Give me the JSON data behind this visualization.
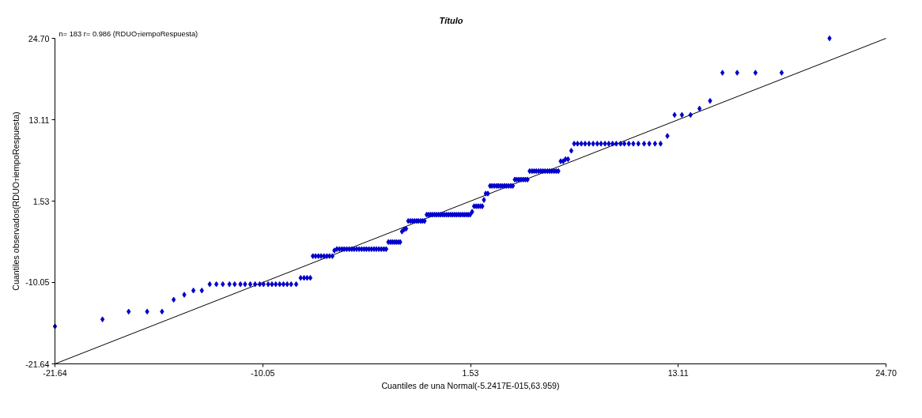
{
  "chart_data": {
    "type": "scatter",
    "title": "Título",
    "xlabel": "Cuantiles de una Normal(-5.2417E-015,63.959)",
    "ylabel": "Cuantiles observados(RDUO$_{T}$iempoRespuesta)",
    "annotations": [
      "n= 183 r= 0.986 (RDUO$_{T}$iempoRespuesta)"
    ],
    "xlim": [
      -21.64,
      24.7
    ],
    "ylim": [
      -21.64,
      24.7
    ],
    "xticks": [
      -21.64,
      -10.05,
      1.53,
      13.11,
      {
        "value": 24.7,
        "label": "24.70"
      }
    ],
    "yticks": [
      -21.64,
      -10.05,
      1.53,
      13.11,
      {
        "value": 24.7,
        "label": "24.70"
      }
    ],
    "grid": false,
    "series": [
      {
        "type": "line",
        "color": "#000000",
        "x": [
          -21.6,
          24.7
        ],
        "values": [
          -21.6,
          24.7
        ]
      },
      {
        "color": "#0000cc",
        "marker": "diamond",
        "x": [
          -21.64,
          -18.99,
          -17.53,
          -16.5,
          -15.67,
          -15.02,
          -14.43,
          -13.92,
          -13.45,
          -13.01,
          -12.64,
          -12.28,
          -11.91,
          -11.62,
          -11.3,
          -11.04,
          -10.75,
          -10.48,
          -10.22,
          -10.01,
          -9.75,
          -9.54,
          -9.33,
          -9.11,
          -8.9,
          -8.69,
          -8.47,
          -8.19,
          -7.94,
          -7.75,
          -7.58,
          -7.4,
          -7.26,
          -7.11,
          -6.95,
          -6.8,
          -6.64,
          -6.48,
          -6.33,
          -6.17,
          -6.06,
          -5.92,
          -5.78,
          -5.64,
          -5.51,
          -5.37,
          -5.23,
          -5.09,
          -4.96,
          -4.82,
          -4.68,
          -4.54,
          -4.4,
          -4.27,
          -4.13,
          -3.99,
          -3.85,
          -3.72,
          -3.58,
          -3.44,
          -3.3,
          -3.17,
          -3.05,
          -2.94,
          -2.83,
          -2.72,
          -2.61,
          -2.5,
          -2.39,
          -2.29,
          -2.17,
          -2.06,
          -1.94,
          -1.82,
          -1.71,
          -1.59,
          -1.48,
          -1.37,
          -1.25,
          -1.14,
          -1.03,
          -0.91,
          -0.8,
          -0.69,
          -0.58,
          -0.47,
          -0.36,
          -0.25,
          -0.14,
          -0.03,
          0.08,
          0.19,
          0.3,
          0.41,
          0.52,
          0.63,
          0.74,
          0.85,
          0.96,
          1.07,
          1.18,
          1.29,
          1.4,
          1.51,
          1.62,
          1.73,
          1.85,
          1.96,
          2.08,
          2.19,
          2.28,
          2.38,
          2.5,
          2.62,
          2.73,
          2.85,
          2.97,
          3.08,
          3.19,
          3.31,
          3.43,
          3.54,
          3.66,
          3.78,
          3.89,
          4.0,
          4.11,
          4.23,
          4.35,
          4.47,
          4.59,
          4.71,
          4.83,
          4.96,
          5.08,
          5.2,
          5.33,
          5.45,
          5.57,
          5.69,
          5.82,
          5.94,
          6.06,
          6.19,
          6.31,
          6.43,
          6.56,
          6.7,
          6.83,
          6.97,
          7.15,
          7.31,
          7.5,
          7.71,
          7.92,
          8.14,
          8.37,
          8.6,
          8.81,
          9.03,
          9.24,
          9.45,
          9.66,
          9.9,
          10.11,
          10.36,
          10.61,
          10.89,
          11.21,
          11.5,
          11.82,
          12.13,
          12.51,
          12.91,
          13.32,
          13.8,
          14.3,
          14.89,
          15.58,
          16.4,
          17.42,
          18.88,
          21.55
        ],
        "values": [
          -16.3,
          -15.3,
          -14.2,
          -14.2,
          -14.2,
          -12.5,
          -11.8,
          -11.2,
          -11.2,
          -10.3,
          -10.3,
          -10.3,
          -10.3,
          -10.3,
          -10.3,
          -10.3,
          -10.3,
          -10.3,
          -10.3,
          -10.3,
          -10.3,
          -10.3,
          -10.3,
          -10.3,
          -10.3,
          -10.3,
          -10.3,
          -10.3,
          -9.4,
          -9.4,
          -9.4,
          -9.4,
          -6.3,
          -6.3,
          -6.3,
          -6.3,
          -6.3,
          -6.3,
          -6.3,
          -6.3,
          -5.5,
          -5.3,
          -5.3,
          -5.3,
          -5.3,
          -5.3,
          -5.3,
          -5.3,
          -5.3,
          -5.3,
          -5.3,
          -5.3,
          -5.3,
          -5.3,
          -5.3,
          -5.3,
          -5.3,
          -5.3,
          -5.3,
          -5.3,
          -5.3,
          -5.3,
          -4.3,
          -4.3,
          -4.3,
          -4.3,
          -4.3,
          -4.3,
          -4.3,
          -2.8,
          -2.5,
          -2.4,
          -1.3,
          -1.3,
          -1.3,
          -1.3,
          -1.3,
          -1.3,
          -1.3,
          -1.3,
          -1.3,
          -0.4,
          -0.4,
          -0.4,
          -0.4,
          -0.4,
          -0.4,
          -0.4,
          -0.4,
          -0.4,
          -0.4,
          -0.4,
          -0.4,
          -0.4,
          -0.4,
          -0.4,
          -0.4,
          -0.4,
          -0.4,
          -0.4,
          -0.4,
          -0.4,
          -0.4,
          -0.4,
          0.0,
          0.8,
          0.8,
          0.8,
          0.8,
          0.8,
          1.7,
          2.6,
          2.6,
          3.7,
          3.7,
          3.7,
          3.7,
          3.7,
          3.7,
          3.7,
          3.7,
          3.7,
          3.7,
          3.7,
          3.7,
          4.6,
          4.6,
          4.6,
          4.6,
          4.6,
          4.6,
          4.6,
          5.8,
          5.8,
          5.8,
          5.8,
          5.8,
          5.8,
          5.8,
          5.8,
          5.8,
          5.8,
          5.8,
          5.8,
          5.8,
          5.8,
          7.2,
          7.2,
          7.5,
          7.5,
          8.7,
          9.7,
          9.7,
          9.7,
          9.7,
          9.7,
          9.7,
          9.7,
          9.7,
          9.7,
          9.7,
          9.7,
          9.7,
          9.7,
          9.7,
          9.7,
          9.7,
          9.7,
          9.7,
          9.7,
          9.7,
          9.7,
          10.8,
          13.8,
          13.8,
          13.8,
          14.7,
          15.8,
          19.8,
          19.8,
          19.8,
          19.8,
          24.7
        ]
      }
    ]
  }
}
